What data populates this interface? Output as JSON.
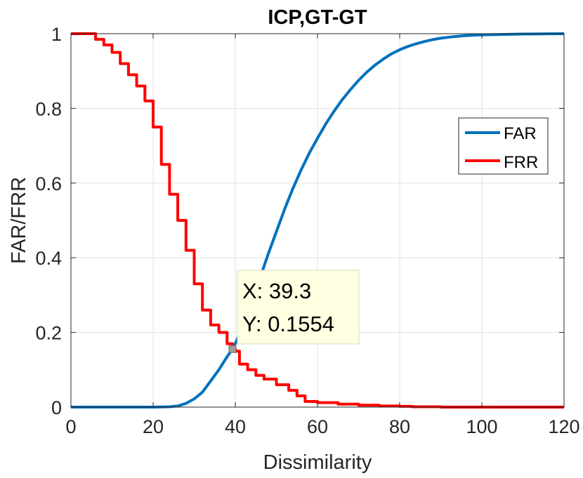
{
  "chart_data": {
    "type": "line",
    "title": "ICP,GT-GT",
    "xlabel": "Dissimilarity",
    "ylabel": "FAR/FRR",
    "xlim": [
      0,
      120
    ],
    "ylim": [
      0,
      1
    ],
    "xticks": [
      0,
      20,
      40,
      60,
      80,
      100,
      120
    ],
    "yticks": [
      0,
      0.2,
      0.4,
      0.6,
      0.8,
      1
    ],
    "xtick_labels": [
      "0",
      "20",
      "40",
      "60",
      "80",
      "100",
      "120"
    ],
    "ytick_labels": [
      "0",
      "0.2",
      "0.4",
      "0.6",
      "0.8",
      "1"
    ],
    "grid": true,
    "legend_position": "top-right",
    "series": [
      {
        "name": "FAR",
        "color": "#0072BD",
        "x": [
          0,
          10,
          20,
          24,
          26,
          28,
          30,
          32,
          34,
          36,
          38,
          39.3,
          40,
          42,
          44,
          46,
          48,
          50,
          52,
          54,
          56,
          58,
          60,
          62,
          64,
          66,
          68,
          70,
          72,
          74,
          76,
          78,
          80,
          82,
          84,
          86,
          88,
          90,
          93,
          96,
          100,
          105,
          110,
          115,
          120
        ],
        "y": [
          0,
          0,
          0,
          0.001,
          0.003,
          0.01,
          0.022,
          0.04,
          0.07,
          0.1,
          0.135,
          0.1554,
          0.17,
          0.22,
          0.28,
          0.345,
          0.41,
          0.47,
          0.53,
          0.585,
          0.635,
          0.68,
          0.72,
          0.758,
          0.792,
          0.823,
          0.85,
          0.875,
          0.897,
          0.916,
          0.932,
          0.946,
          0.957,
          0.966,
          0.973,
          0.979,
          0.984,
          0.988,
          0.992,
          0.995,
          0.997,
          0.998,
          0.999,
          0.9995,
          1.0
        ]
      },
      {
        "name": "FRR",
        "color": "#FF0000",
        "x": [
          0,
          4,
          6,
          8,
          10,
          12,
          14,
          16,
          18,
          20,
          22,
          24,
          26,
          28,
          30,
          32,
          34,
          36,
          38,
          39.3,
          40,
          41,
          43,
          45,
          47,
          50,
          53,
          55,
          57,
          60,
          65,
          70,
          75,
          80,
          83,
          90,
          100,
          120
        ],
        "y": [
          1,
          1,
          0.985,
          0.97,
          0.95,
          0.92,
          0.89,
          0.86,
          0.82,
          0.75,
          0.65,
          0.57,
          0.5,
          0.42,
          0.33,
          0.26,
          0.22,
          0.2,
          0.17,
          0.1554,
          0.15,
          0.115,
          0.1,
          0.085,
          0.075,
          0.06,
          0.045,
          0.03,
          0.015,
          0.012,
          0.008,
          0.005,
          0.003,
          0.002,
          0.001,
          0,
          0,
          0
        ]
      }
    ],
    "annotation": {
      "x_value": 39.3,
      "y_value": 0.1554,
      "x_text": "X: 39.3",
      "y_text": "Y: 0.1554"
    }
  }
}
